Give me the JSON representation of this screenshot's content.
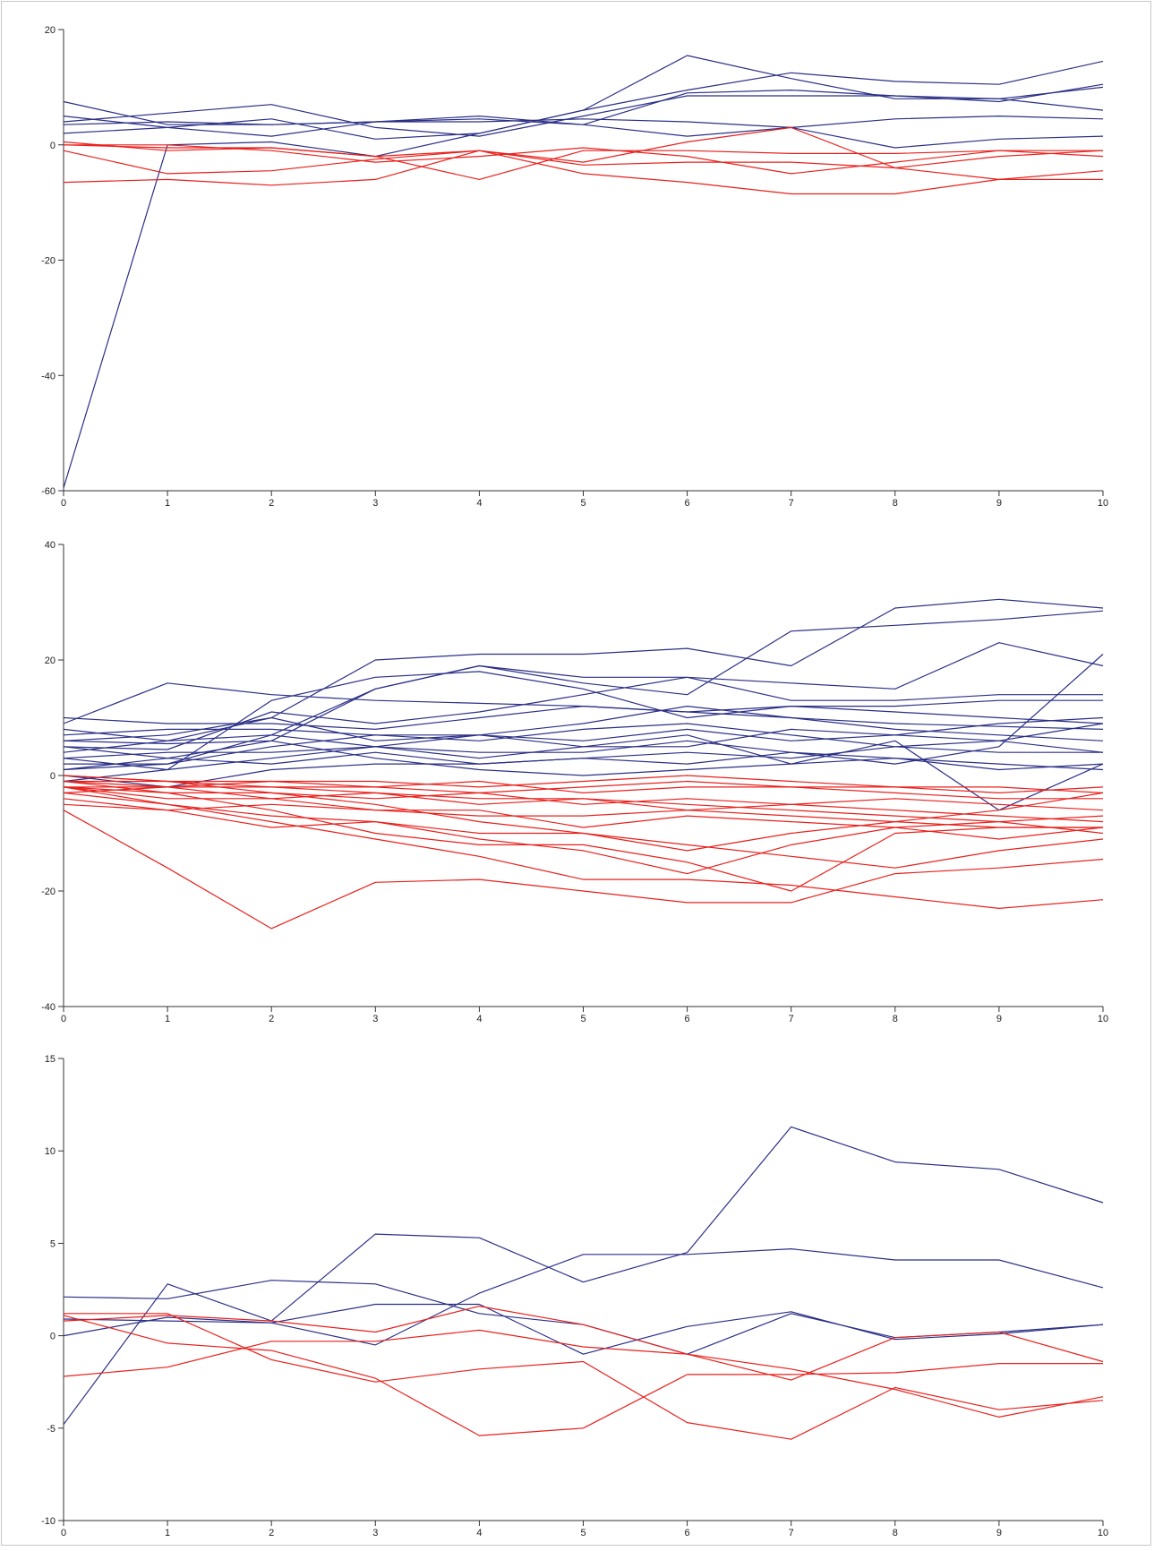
{
  "colors": {
    "blue": "#2b2f86",
    "red": "#e8201c",
    "axis": "#333333"
  },
  "chart_data": [
    {
      "type": "line",
      "title": "",
      "xlabel": "",
      "ylabel": "",
      "xlim": [
        0,
        10
      ],
      "ylim": [
        -60,
        20
      ],
      "xticks": [
        0,
        1,
        2,
        3,
        4,
        5,
        6,
        7,
        8,
        9,
        10
      ],
      "yticks": [
        -60,
        -40,
        -20,
        0,
        20
      ],
      "grid": false,
      "series": [
        {
          "group": "blue",
          "values": [
            7.5,
            3.5,
            3.5,
            4,
            4.5,
            3.5,
            9,
            9.5,
            8.5,
            8,
            6
          ]
        },
        {
          "group": "blue",
          "values": [
            5,
            3,
            1.5,
            4,
            4,
            4.5,
            4,
            3,
            -0.5,
            1,
            1.5
          ]
        },
        {
          "group": "blue",
          "values": [
            4,
            5.5,
            7,
            3,
            1.5,
            5,
            8.5,
            8.5,
            8.5,
            7.5,
            10.5
          ]
        },
        {
          "group": "blue",
          "values": [
            2,
            3,
            4.5,
            1,
            2,
            6,
            9.5,
            12.5,
            11,
            10.5,
            14.5
          ]
        },
        {
          "group": "blue",
          "values": [
            3.5,
            4,
            3.5,
            4,
            5,
            3.5,
            1.5,
            3,
            4.5,
            5,
            4.5
          ]
        },
        {
          "group": "blue",
          "values": [
            -59.5,
            0,
            0.5,
            -2,
            2,
            6,
            15.5,
            11.5,
            8,
            8,
            10
          ]
        },
        {
          "group": "red",
          "values": [
            0,
            -0.5,
            -0.5,
            -2,
            -6,
            -1,
            -1,
            -1.5,
            -1.5,
            -1,
            -1
          ]
        },
        {
          "group": "red",
          "values": [
            -1,
            -5,
            -4.5,
            -2.5,
            -1,
            -5,
            -6.5,
            -8.5,
            -8.5,
            -6,
            -6
          ]
        },
        {
          "group": "red",
          "values": [
            0,
            0,
            -1,
            -3,
            -2,
            -0.5,
            -2,
            -5,
            -3,
            -1,
            -2
          ]
        },
        {
          "group": "red",
          "values": [
            -6.5,
            -6,
            -7,
            -6,
            -1,
            -3.5,
            -3,
            -3,
            -4,
            -6,
            -4.5
          ]
        },
        {
          "group": "red",
          "values": [
            0.5,
            -1,
            -0.5,
            -2,
            -1,
            -3,
            0.5,
            3,
            -4,
            -2,
            -1
          ]
        }
      ]
    },
    {
      "type": "line",
      "title": "",
      "xlabel": "",
      "ylabel": "",
      "xlim": [
        0,
        10
      ],
      "ylim": [
        -40,
        40
      ],
      "xticks": [
        0,
        1,
        2,
        3,
        4,
        5,
        6,
        7,
        8,
        9,
        10
      ],
      "yticks": [
        -40,
        -20,
        0,
        20,
        40
      ],
      "grid": false,
      "series": [
        {
          "group": "blue",
          "values": [
            9,
            16,
            14,
            13,
            12.5,
            12,
            11,
            10,
            9,
            8.5,
            8
          ]
        },
        {
          "group": "blue",
          "values": [
            4,
            6,
            10,
            20,
            21,
            21,
            22,
            19,
            29,
            30.5,
            29
          ]
        },
        {
          "group": "blue",
          "values": [
            1,
            2,
            7,
            15,
            19,
            16,
            14,
            25,
            26,
            27,
            28.5
          ]
        },
        {
          "group": "blue",
          "values": [
            6,
            5.5,
            6,
            15,
            19,
            17,
            17,
            16,
            15,
            23,
            19
          ]
        },
        {
          "group": "blue",
          "values": [
            3,
            1,
            13,
            17,
            18,
            15,
            10,
            12,
            12,
            13,
            13
          ]
        },
        {
          "group": "blue",
          "values": [
            5,
            4.5,
            11,
            9,
            11,
            14,
            17,
            13,
            13,
            14,
            14
          ]
        },
        {
          "group": "blue",
          "values": [
            7,
            8,
            8,
            7,
            6,
            8,
            9,
            7,
            5,
            4,
            4
          ]
        },
        {
          "group": "blue",
          "values": [
            2,
            2,
            5,
            7,
            7,
            6,
            8,
            6,
            7,
            9,
            10
          ]
        },
        {
          "group": "blue",
          "values": [
            -1,
            1,
            3,
            5,
            4,
            4,
            6,
            4,
            3,
            2,
            1
          ]
        },
        {
          "group": "blue",
          "values": [
            0,
            -2,
            1,
            2,
            2,
            3,
            4,
            3,
            5,
            6,
            9
          ]
        },
        {
          "group": "blue",
          "values": [
            5,
            3,
            6,
            3,
            1,
            0,
            1,
            2,
            3,
            1,
            2
          ]
        },
        {
          "group": "blue",
          "values": [
            8,
            6,
            7,
            5,
            7,
            5,
            7,
            2,
            6,
            -6,
            2
          ]
        },
        {
          "group": "blue",
          "values": [
            1,
            3,
            2,
            4,
            2,
            3,
            2,
            4,
            2,
            5,
            21
          ]
        },
        {
          "group": "blue",
          "values": [
            6,
            7,
            10,
            6,
            7,
            9,
            12,
            10,
            8,
            7,
            6
          ]
        },
        {
          "group": "blue",
          "values": [
            3,
            4,
            4,
            5,
            3,
            5,
            5,
            8,
            7,
            6,
            4
          ]
        },
        {
          "group": "blue",
          "values": [
            10,
            9,
            9,
            8,
            10,
            12,
            11,
            12,
            11,
            10,
            9
          ]
        },
        {
          "group": "red",
          "values": [
            -6,
            -16,
            -26.5,
            -18.5,
            -18,
            -20,
            -22,
            -22,
            -17,
            -16,
            -14.5
          ]
        },
        {
          "group": "red",
          "values": [
            -2,
            -5,
            -8,
            -11,
            -14,
            -18,
            -18,
            -19,
            -21,
            -23,
            -21.5
          ]
        },
        {
          "group": "red",
          "values": [
            -1,
            -3,
            -6,
            -10,
            -12,
            -12,
            -15,
            -20,
            -10,
            -9,
            -9
          ]
        },
        {
          "group": "red",
          "values": [
            0,
            -1,
            -3,
            -5,
            -8,
            -10,
            -13,
            -10,
            -8,
            -6,
            -3
          ]
        },
        {
          "group": "red",
          "values": [
            -2,
            -4,
            -4,
            -6,
            -6,
            -9,
            -7,
            -8,
            -9,
            -11,
            -9
          ]
        },
        {
          "group": "red",
          "values": [
            -3,
            -2,
            -2,
            -3,
            -4,
            -4,
            -5,
            -6,
            -7,
            -8,
            -10
          ]
        },
        {
          "group": "red",
          "values": [
            -5,
            -6,
            -9,
            -8,
            -11,
            -13,
            -17,
            -12,
            -9,
            -8,
            -7
          ]
        },
        {
          "group": "red",
          "values": [
            -1,
            -1,
            -2,
            -2,
            -3,
            -2,
            -1,
            -2,
            -3,
            -4,
            -4
          ]
        },
        {
          "group": "red",
          "values": [
            -4,
            -6,
            -5,
            -6,
            -7,
            -7,
            -6,
            -7,
            -8,
            -9,
            -9
          ]
        },
        {
          "group": "red",
          "values": [
            -2,
            -2,
            -1,
            -1,
            -2,
            -1,
            0,
            -1,
            -2,
            -2,
            -3
          ]
        },
        {
          "group": "red",
          "values": [
            -3,
            -5,
            -7,
            -8,
            -10,
            -10,
            -12,
            -14,
            -16,
            -13,
            -11
          ]
        },
        {
          "group": "red",
          "values": [
            0,
            -1,
            -1,
            -2,
            -1,
            -3,
            -2,
            -2,
            -2,
            -3,
            -2
          ]
        },
        {
          "group": "red",
          "values": [
            -1,
            -2,
            -4,
            -3,
            -5,
            -4,
            -6,
            -5,
            -6,
            -7,
            -8
          ]
        },
        {
          "group": "red",
          "values": [
            -2,
            -3,
            -3,
            -4,
            -3,
            -5,
            -4,
            -5,
            -4,
            -5,
            -6
          ]
        }
      ]
    },
    {
      "type": "line",
      "title": "",
      "xlabel": "",
      "ylabel": "",
      "xlim": [
        0,
        10
      ],
      "ylim": [
        -10,
        15
      ],
      "xticks": [
        0,
        1,
        2,
        3,
        4,
        5,
        6,
        7,
        8,
        9,
        10
      ],
      "yticks": [
        -10,
        -5,
        0,
        5,
        10,
        15
      ],
      "grid": false,
      "series": [
        {
          "group": "blue",
          "values": [
            -4.8,
            2.8,
            0.8,
            5.5,
            5.3,
            2.9,
            4.5,
            11.3,
            9.4,
            9,
            7.2
          ]
        },
        {
          "group": "blue",
          "values": [
            2.1,
            2,
            3,
            2.8,
            1.2,
            0.6,
            -1,
            1.2,
            -0.1,
            0.2,
            0.6
          ]
        },
        {
          "group": "blue",
          "values": [
            0,
            1,
            0.7,
            1.7,
            1.7,
            -1,
            0.5,
            1.3,
            -0.2,
            0.1,
            0.6
          ]
        },
        {
          "group": "blue",
          "values": [
            0.9,
            0.8,
            0.7,
            -0.5,
            2.3,
            4.4,
            4.4,
            4.7,
            4.1,
            4.1,
            2.6
          ]
        },
        {
          "group": "red",
          "values": [
            1.1,
            -0.4,
            -0.8,
            -2.3,
            -5.4,
            -5,
            -2.1,
            -2.1,
            -2,
            -1.5,
            -1.5
          ]
        },
        {
          "group": "red",
          "values": [
            -2.2,
            -1.7,
            -0.3,
            -0.3,
            0.3,
            -0.6,
            -1,
            -1.8,
            -2.9,
            -4.4,
            -3.3
          ]
        },
        {
          "group": "red",
          "values": [
            1.2,
            1.2,
            -1.3,
            -2.5,
            -1.8,
            -1.4,
            -4.7,
            -5.6,
            -2.8,
            -4,
            -3.5
          ]
        },
        {
          "group": "red",
          "values": [
            0.8,
            1.1,
            0.8,
            0.2,
            1.6,
            0.6,
            -1,
            -2.4,
            -0.1,
            0.2,
            -1.4
          ]
        }
      ]
    }
  ]
}
